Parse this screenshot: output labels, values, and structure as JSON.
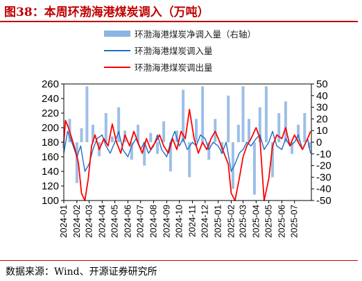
{
  "title": "图38：本周环渤海港煤炭调入（万吨）",
  "source": "数据来源：Wind、开源证券研究所",
  "chart_data": {
    "type": "line",
    "title": "本周环渤海港煤炭调入（万吨）",
    "x_tick_labels": [
      "2024-01",
      "2024-02",
      "2024-03",
      "2024-04",
      "2024-05",
      "2024-06",
      "2024-07",
      "2024-08",
      "2024-09",
      "2024-10",
      "2024-11",
      "2024-12",
      "2025-01",
      "2025-02",
      "2025-03",
      "2025-04",
      "2025-05",
      "2025-06",
      "2025-07"
    ],
    "x_range": [
      "2024-01-01",
      "2025-08-10"
    ],
    "y_left": {
      "range": [
        100,
        260
      ],
      "ticks": [
        100,
        120,
        140,
        160,
        180,
        200,
        220,
        240,
        260
      ]
    },
    "y_right": {
      "range": [
        -50,
        50
      ],
      "ticks": [
        -50,
        -40,
        -30,
        -20,
        -10,
        0,
        10,
        20,
        30,
        40,
        50
      ]
    },
    "grid": false,
    "legend_position": "top-center",
    "series": [
      {
        "name": "环渤海港煤炭净调入量（右轴）",
        "type": "bar",
        "axis": "right",
        "color": "#8cb4e3",
        "x": [
          "2024-01-01",
          "2024-01-15",
          "2024-02-01",
          "2024-02-12",
          "2024-02-25",
          "2024-03-10",
          "2024-03-25",
          "2024-04-10",
          "2024-04-25",
          "2024-05-10",
          "2024-05-25",
          "2024-06-10",
          "2024-06-25",
          "2024-07-10",
          "2024-07-25",
          "2024-08-10",
          "2024-08-25",
          "2024-09-10",
          "2024-09-25",
          "2024-10-10",
          "2024-10-25",
          "2024-11-10",
          "2024-11-25",
          "2024-12-10",
          "2024-12-25",
          "2025-01-10",
          "2025-01-25",
          "2025-02-05",
          "2025-02-18",
          "2025-03-01",
          "2025-03-15",
          "2025-03-28",
          "2025-04-10",
          "2025-04-25",
          "2025-05-10",
          "2025-05-25",
          "2025-06-10",
          "2025-06-25",
          "2025-07-10",
          "2025-07-25",
          "2025-08-05"
        ],
        "values": [
          -5,
          20,
          -35,
          12,
          48,
          15,
          -12,
          25,
          5,
          30,
          10,
          -15,
          15,
          -20,
          8,
          -10,
          18,
          -25,
          10,
          45,
          -30,
          20,
          48,
          -15,
          20,
          -10,
          40,
          -40,
          15,
          48,
          20,
          -45,
          30,
          48,
          -30,
          25,
          35,
          -10,
          15,
          25,
          -5
        ]
      },
      {
        "name": "环渤海港煤炭调入量",
        "type": "line",
        "axis": "left",
        "color": "#1f6fc5",
        "x": [
          "2024-01-01",
          "2024-01-10",
          "2024-01-20",
          "2024-02-01",
          "2024-02-10",
          "2024-02-20",
          "2024-03-01",
          "2024-03-10",
          "2024-03-20",
          "2024-04-01",
          "2024-04-10",
          "2024-04-20",
          "2024-05-01",
          "2024-05-10",
          "2024-05-20",
          "2024-06-01",
          "2024-06-10",
          "2024-06-20",
          "2024-07-01",
          "2024-07-10",
          "2024-07-20",
          "2024-08-01",
          "2024-08-10",
          "2024-08-20",
          "2024-09-01",
          "2024-09-10",
          "2024-09-20",
          "2024-10-01",
          "2024-10-10",
          "2024-10-20",
          "2024-11-01",
          "2024-11-10",
          "2024-11-20",
          "2024-12-01",
          "2024-12-10",
          "2024-12-20",
          "2025-01-01",
          "2025-01-10",
          "2025-01-20",
          "2025-02-01",
          "2025-02-10",
          "2025-02-20",
          "2025-03-01",
          "2025-03-10",
          "2025-03-20",
          "2025-04-01",
          "2025-04-10",
          "2025-04-20",
          "2025-05-01",
          "2025-05-10",
          "2025-05-20",
          "2025-06-01",
          "2025-06-10",
          "2025-06-20",
          "2025-07-01",
          "2025-07-10",
          "2025-07-20",
          "2025-08-01",
          "2025-08-08"
        ],
        "values": [
          165,
          195,
          180,
          160,
          175,
          140,
          150,
          170,
          185,
          190,
          175,
          165,
          180,
          195,
          170,
          160,
          175,
          185,
          170,
          180,
          165,
          175,
          190,
          170,
          160,
          180,
          195,
          175,
          185,
          170,
          180,
          175,
          190,
          185,
          170,
          180,
          175,
          165,
          180,
          140,
          150,
          165,
          170,
          180,
          175,
          185,
          190,
          170,
          180,
          195,
          175,
          170,
          185,
          175,
          180,
          190,
          170,
          185,
          165
        ]
      },
      {
        "name": "环渤海港煤炭调出量",
        "type": "line",
        "axis": "left",
        "color": "#ff0000",
        "x": [
          "2024-01-01",
          "2024-01-05",
          "2024-01-12",
          "2024-01-20",
          "2024-01-28",
          "2024-02-05",
          "2024-02-12",
          "2024-02-20",
          "2024-02-28",
          "2024-03-07",
          "2024-03-15",
          "2024-03-25",
          "2024-04-05",
          "2024-04-15",
          "2024-04-25",
          "2024-05-05",
          "2024-05-15",
          "2024-05-25",
          "2024-06-05",
          "2024-06-15",
          "2024-06-25",
          "2024-07-05",
          "2024-07-15",
          "2024-07-25",
          "2024-08-05",
          "2024-08-15",
          "2024-08-25",
          "2024-09-05",
          "2024-09-15",
          "2024-09-25",
          "2024-10-05",
          "2024-10-15",
          "2024-10-25",
          "2024-11-05",
          "2024-11-15",
          "2024-11-25",
          "2024-12-05",
          "2024-12-15",
          "2024-12-25",
          "2025-01-05",
          "2025-01-15",
          "2025-01-25",
          "2025-02-01",
          "2025-02-10",
          "2025-02-20",
          "2025-03-01",
          "2025-03-10",
          "2025-03-20",
          "2025-04-01",
          "2025-04-10",
          "2025-04-20",
          "2025-05-01",
          "2025-05-10",
          "2025-05-20",
          "2025-06-01",
          "2025-06-10",
          "2025-06-20",
          "2025-07-01",
          "2025-07-10",
          "2025-07-20",
          "2025-08-01",
          "2025-08-08"
        ],
        "values": [
          180,
          210,
          200,
          185,
          170,
          150,
          110,
          100,
          130,
          175,
          190,
          170,
          185,
          175,
          205,
          180,
          165,
          190,
          175,
          195,
          180,
          165,
          185,
          170,
          180,
          190,
          175,
          165,
          185,
          170,
          195,
          185,
          225,
          185,
          165,
          180,
          170,
          185,
          195,
          180,
          165,
          150,
          110,
          100,
          130,
          160,
          175,
          185,
          200,
          185,
          100,
          130,
          175,
          190,
          185,
          200,
          175,
          190,
          180,
          170,
          185,
          195
        ]
      }
    ]
  }
}
